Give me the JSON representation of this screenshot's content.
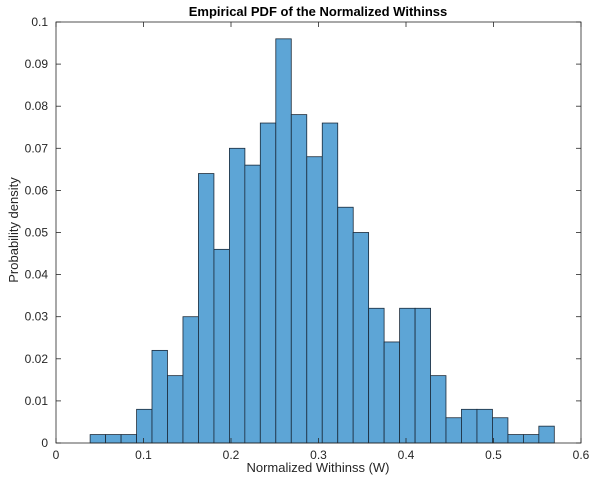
{
  "chart_data": {
    "type": "bar",
    "title": "Empirical PDF of the Normalized Withinss",
    "xlabel": "Normalized Withinss (W)",
    "ylabel": "Probability density",
    "xlim": [
      0,
      0.6
    ],
    "ylim": [
      0,
      0.1
    ],
    "xticks": [
      "0",
      "0.1",
      "0.2",
      "0.3",
      "0.4",
      "0.5",
      "0.6"
    ],
    "yticks": [
      "0",
      "0.01",
      "0.02",
      "0.03",
      "0.04",
      "0.05",
      "0.06",
      "0.07",
      "0.08",
      "0.09",
      "0.1"
    ],
    "bin_width": 0.01768,
    "bins": [
      {
        "x0": 0.039,
        "value": 0.002
      },
      {
        "x0": 0.0567,
        "value": 0.002
      },
      {
        "x0": 0.0744,
        "value": 0.002
      },
      {
        "x0": 0.0921,
        "value": 0.008
      },
      {
        "x0": 0.1097,
        "value": 0.022
      },
      {
        "x0": 0.1274,
        "value": 0.016
      },
      {
        "x0": 0.1451,
        "value": 0.03
      },
      {
        "x0": 0.1628,
        "value": 0.064
      },
      {
        "x0": 0.1805,
        "value": 0.046
      },
      {
        "x0": 0.1982,
        "value": 0.07
      },
      {
        "x0": 0.2158,
        "value": 0.066
      },
      {
        "x0": 0.2335,
        "value": 0.076
      },
      {
        "x0": 0.2512,
        "value": 0.096
      },
      {
        "x0": 0.2689,
        "value": 0.078
      },
      {
        "x0": 0.2866,
        "value": 0.068
      },
      {
        "x0": 0.3043,
        "value": 0.076
      },
      {
        "x0": 0.322,
        "value": 0.056
      },
      {
        "x0": 0.3396,
        "value": 0.05
      },
      {
        "x0": 0.3573,
        "value": 0.032
      },
      {
        "x0": 0.375,
        "value": 0.024
      },
      {
        "x0": 0.3927,
        "value": 0.032
      },
      {
        "x0": 0.4104,
        "value": 0.032
      },
      {
        "x0": 0.428,
        "value": 0.016
      },
      {
        "x0": 0.4457,
        "value": 0.006
      },
      {
        "x0": 0.4634,
        "value": 0.008
      },
      {
        "x0": 0.4811,
        "value": 0.008
      },
      {
        "x0": 0.4988,
        "value": 0.006
      },
      {
        "x0": 0.5165,
        "value": 0.002
      },
      {
        "x0": 0.5342,
        "value": 0.002
      },
      {
        "x0": 0.5518,
        "value": 0.004
      }
    ],
    "bar_color": "#5da5d6",
    "edge_color": "#1a2a3a",
    "grid": false,
    "legend": "none"
  }
}
